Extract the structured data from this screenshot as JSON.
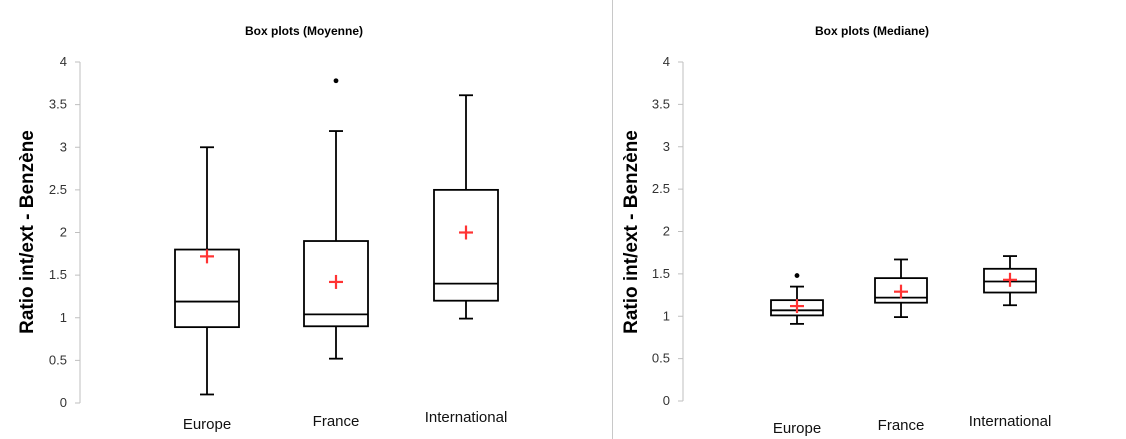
{
  "chart_data": [
    {
      "type": "box",
      "title": "Box plots (Moyenne)",
      "ylabel": "Ratio int/ext - Benzène",
      "ylim": [
        0,
        4
      ],
      "yticks": [
        "0",
        "0.5",
        "1",
        "1.5",
        "2",
        "2.5",
        "3",
        "3.5",
        "4"
      ],
      "categories": [
        "Europe",
        "France",
        "International"
      ],
      "series": [
        {
          "category": "Europe",
          "min": 0.1,
          "q1": 0.89,
          "median": 1.19,
          "q3": 1.8,
          "max": 3.0,
          "mean": 1.72,
          "outliers": []
        },
        {
          "category": "France",
          "min": 0.52,
          "q1": 0.9,
          "median": 1.04,
          "q3": 1.9,
          "max": 3.19,
          "mean": 1.42,
          "outliers": [
            3.78
          ]
        },
        {
          "category": "International",
          "min": 0.99,
          "q1": 1.2,
          "median": 1.4,
          "q3": 2.5,
          "max": 3.61,
          "mean": 2.0,
          "outliers": []
        }
      ],
      "mean_color": "#ff3333",
      "box_color": "#000000"
    },
    {
      "type": "box",
      "title": "Box plots (Mediane)",
      "ylabel": "Ratio int/ext - Benzène",
      "ylim": [
        0,
        4
      ],
      "yticks": [
        "0",
        "0.5",
        "1",
        "1.5",
        "2",
        "2.5",
        "3",
        "3.5",
        "4"
      ],
      "categories": [
        "Europe",
        "France",
        "International"
      ],
      "series": [
        {
          "category": "Europe",
          "min": 0.91,
          "q1": 1.01,
          "median": 1.07,
          "q3": 1.19,
          "max": 1.35,
          "mean": 1.12,
          "outliers": [
            1.48
          ]
        },
        {
          "category": "France",
          "min": 0.99,
          "q1": 1.16,
          "median": 1.22,
          "q3": 1.45,
          "max": 1.67,
          "mean": 1.29,
          "outliers": []
        },
        {
          "category": "International",
          "min": 1.13,
          "q1": 1.28,
          "median": 1.41,
          "q3": 1.56,
          "max": 1.71,
          "mean": 1.43,
          "outliers": []
        }
      ],
      "mean_color": "#ff3333",
      "box_color": "#000000"
    }
  ]
}
